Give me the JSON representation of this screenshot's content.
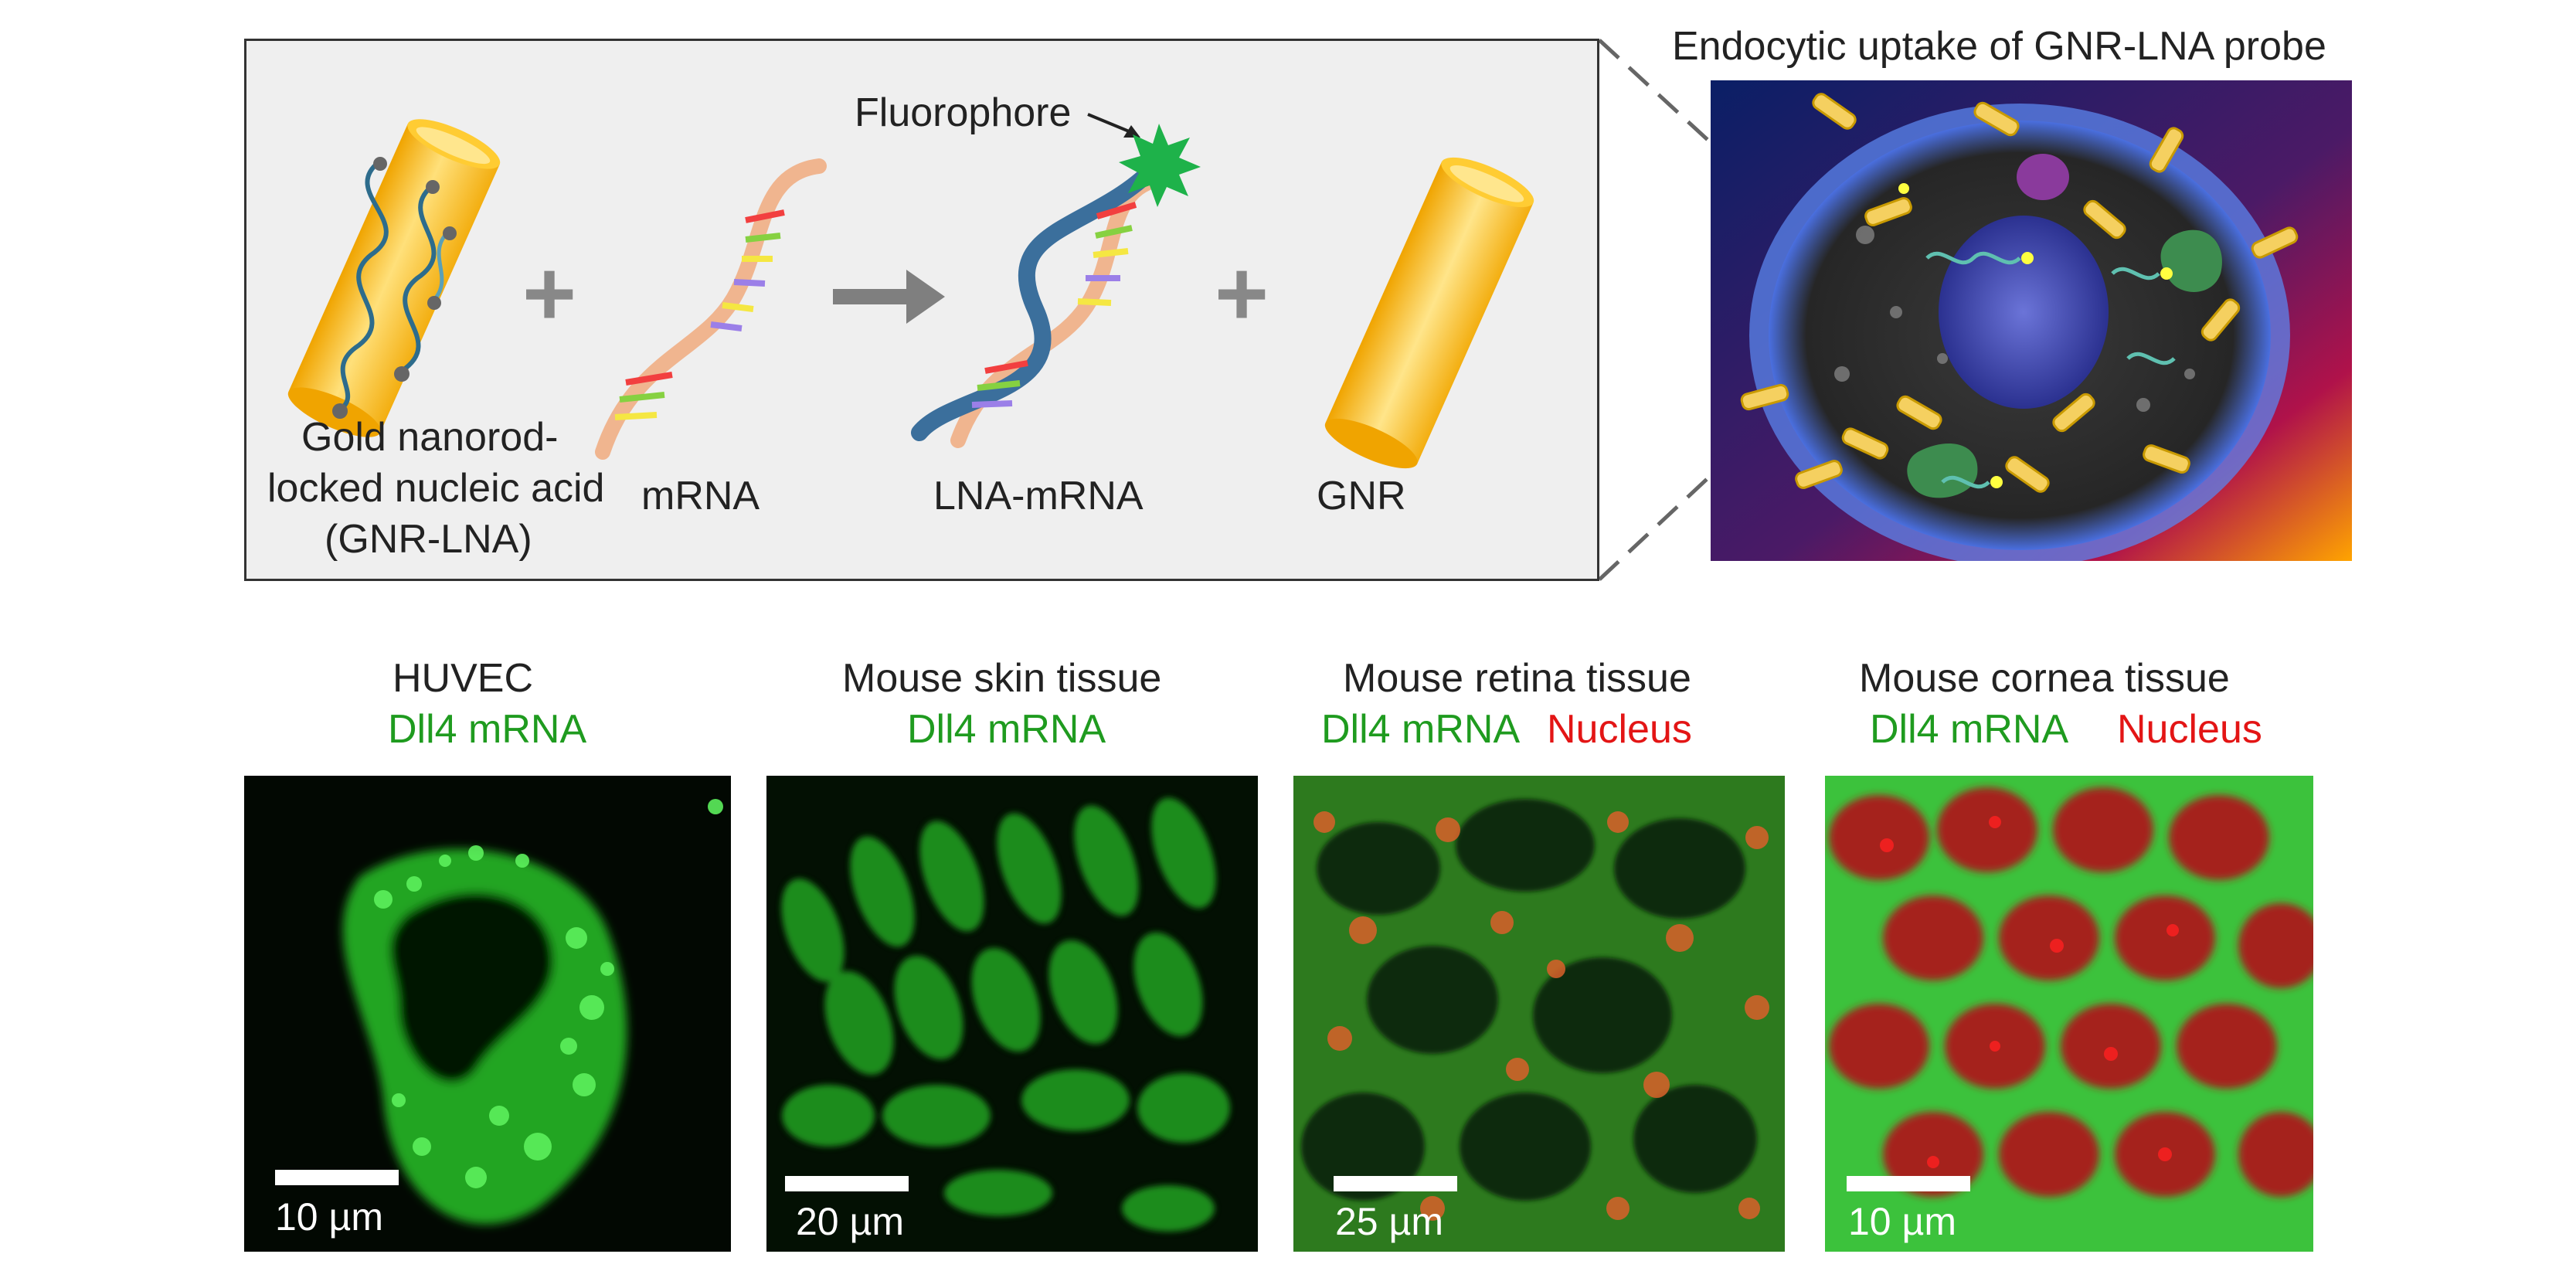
{
  "schematic": {
    "title": "Endocytic uptake of GNR-LNA probe",
    "fluorophore_label": "Fluorophore",
    "gnr_lna_label_lines": [
      "Gold nanorod-",
      "locked nucleic acid",
      "(GNR-LNA)"
    ],
    "mrna_label": "mRNA",
    "lna_mrna_label": "LNA-mRNA",
    "gnr_label": "GNR",
    "plus_symbol": "+",
    "arrow_symbol": "→"
  },
  "colors": {
    "gold": "#f5b81c",
    "mrna_strand": "#f0b58f",
    "lna_strand": "#3b6f9c",
    "fluorophore": "#1eb24a",
    "green_label": "#1f9b1f",
    "red_label": "#e31515"
  },
  "panels": [
    {
      "title": "HUVEC",
      "labels": [
        {
          "text": "Dll4 mRNA",
          "color": "green"
        }
      ],
      "scale": "10 µm"
    },
    {
      "title": "Mouse skin tissue",
      "labels": [
        {
          "text": "Dll4 mRNA",
          "color": "green"
        }
      ],
      "scale": "20 µm"
    },
    {
      "title": "Mouse retina tissue",
      "labels": [
        {
          "text": "Dll4 mRNA",
          "color": "green"
        },
        {
          "text": "Nucleus",
          "color": "red"
        }
      ],
      "scale": "25 µm"
    },
    {
      "title": "Mouse cornea tissue",
      "labels": [
        {
          "text": "Dll4 mRNA",
          "color": "green"
        },
        {
          "text": "Nucleus",
          "color": "red"
        }
      ],
      "scale": "10 µm"
    }
  ]
}
